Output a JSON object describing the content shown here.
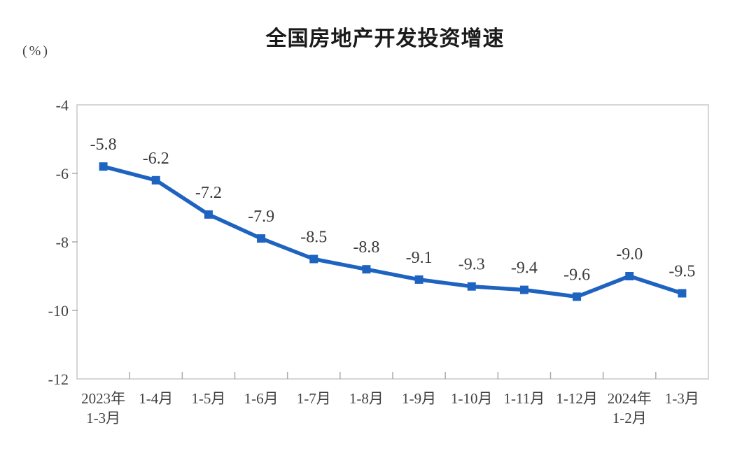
{
  "page": {
    "background_color": "#ffffff"
  },
  "chart_data": {
    "type": "line",
    "title": "全国房地产开发投资增速",
    "unit_label": "(%)",
    "categories": [
      "2023年\n1-3月",
      "1-4月",
      "1-5月",
      "1-6月",
      "1-7月",
      "1-8月",
      "1-9月",
      "1-10月",
      "1-11月",
      "1-12月",
      "2024年\n1-2月",
      "1-3月"
    ],
    "values": [
      -5.8,
      -6.2,
      -7.2,
      -7.9,
      -8.5,
      -8.8,
      -9.1,
      -9.3,
      -9.4,
      -9.6,
      -9.0,
      -9.5
    ],
    "data_labels": [
      "-5.8",
      "-6.2",
      "-7.2",
      "-7.9",
      "-8.5",
      "-8.8",
      "-9.1",
      "-9.3",
      "-9.4",
      "-9.6",
      "-9.0",
      "-9.5"
    ],
    "ylim": [
      -12,
      -4
    ],
    "yticks": [
      -4,
      -6,
      -8,
      -10,
      -12
    ],
    "ytick_labels": [
      "-4",
      "-6",
      "-8",
      "-10",
      "-12"
    ],
    "grid": false,
    "legend": "none",
    "marker": "square",
    "line_color": "#1f63c1",
    "marker_color": "#1f63c1",
    "border_color": "#c9c9c9",
    "tick_color": "#aaaaaa",
    "axis_text_color": "#404040",
    "data_label_color": "#3a3a3a",
    "title_color": "#1a1a1a"
  }
}
